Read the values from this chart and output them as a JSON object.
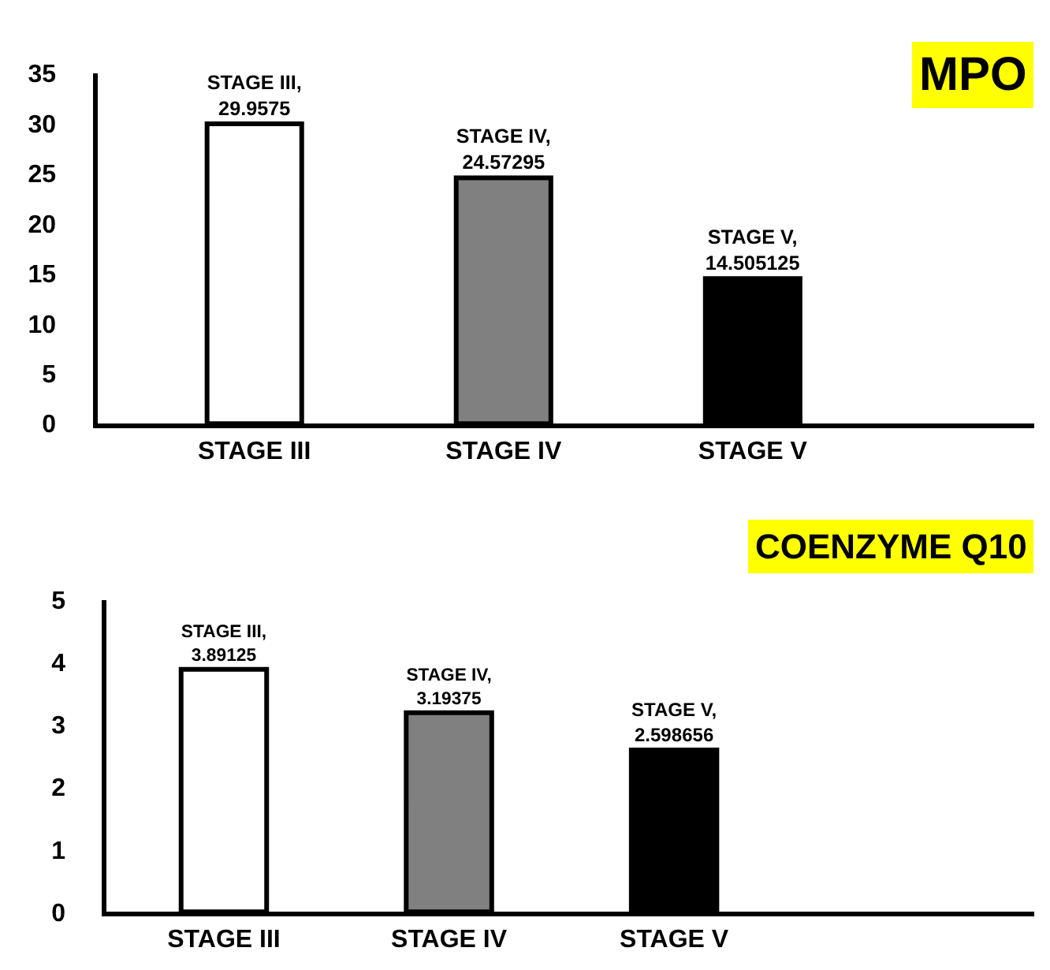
{
  "chart_data": [
    {
      "type": "bar",
      "title": "MPO",
      "categories": [
        "STAGE III",
        "STAGE IV",
        "STAGE V"
      ],
      "values": [
        29.9575,
        24.57295,
        14.505125
      ],
      "colors": [
        "#ffffff",
        "#808080",
        "#000000"
      ],
      "value_labels": [
        "STAGE III,\n29.9575",
        "STAGE IV,\n24.57295",
        "STAGE V,\n14.505125"
      ],
      "ylim": [
        0,
        35
      ],
      "yticks": [
        0,
        5,
        10,
        15,
        20,
        25,
        30,
        35
      ]
    },
    {
      "type": "bar",
      "title": "COENZYME Q10",
      "categories": [
        "STAGE III",
        "STAGE IV",
        "STAGE V"
      ],
      "values": [
        3.89125,
        3.19375,
        2.598656
      ],
      "colors": [
        "#ffffff",
        "#808080",
        "#000000"
      ],
      "value_labels": [
        "STAGE III,\n3.89125",
        "STAGE IV,\n3.19375",
        "STAGE V,\n2.598656"
      ],
      "ylim": [
        0,
        5
      ],
      "yticks": [
        0,
        1,
        2,
        3,
        4,
        5
      ]
    }
  ]
}
